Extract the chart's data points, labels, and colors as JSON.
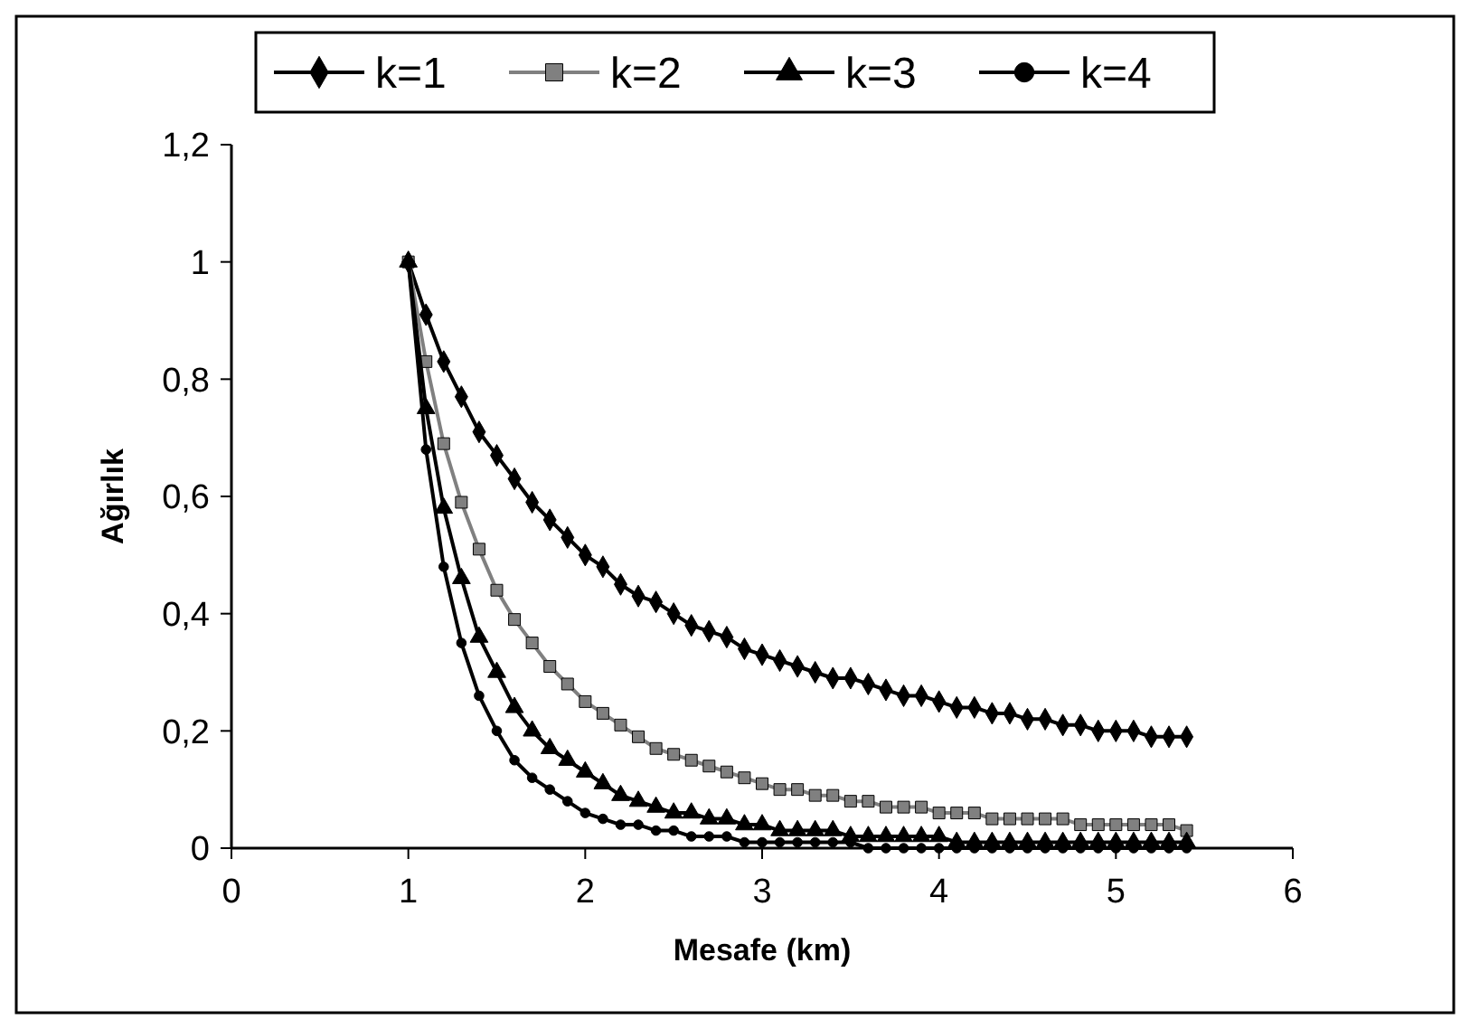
{
  "chart_data": {
    "type": "line",
    "xlabel": "Mesafe (km)",
    "ylabel": "Ağırlık",
    "x": [
      1,
      1.1,
      1.2,
      1.3,
      1.4,
      1.5,
      1.6,
      1.7,
      1.8,
      1.9,
      2,
      2.1,
      2.2,
      2.3,
      2.4,
      2.5,
      2.6,
      2.7,
      2.8,
      2.9,
      3,
      3.1,
      3.2,
      3.3,
      3.4,
      3.5,
      3.6,
      3.7,
      3.8,
      3.9,
      4,
      4.1,
      4.2,
      4.3,
      4.4,
      4.5,
      4.6,
      4.7,
      4.8,
      4.9,
      5,
      5.1,
      5.2,
      5.3,
      5.4
    ],
    "series": [
      {
        "name": "k=1",
        "color": "#000000",
        "marker": "diamond",
        "values": [
          1,
          0.91,
          0.83,
          0.77,
          0.71,
          0.67,
          0.63,
          0.59,
          0.56,
          0.53,
          0.5,
          0.48,
          0.45,
          0.43,
          0.42,
          0.4,
          0.38,
          0.37,
          0.36,
          0.34,
          0.33,
          0.32,
          0.31,
          0.3,
          0.29,
          0.29,
          0.28,
          0.27,
          0.26,
          0.26,
          0.25,
          0.24,
          0.24,
          0.23,
          0.23,
          0.22,
          0.22,
          0.21,
          0.21,
          0.2,
          0.2,
          0.2,
          0.19,
          0.19,
          0.19
        ]
      },
      {
        "name": "k=2",
        "color": "#808080",
        "marker": "square",
        "values": [
          1,
          0.83,
          0.69,
          0.59,
          0.51,
          0.44,
          0.39,
          0.35,
          0.31,
          0.28,
          0.25,
          0.23,
          0.21,
          0.19,
          0.17,
          0.16,
          0.15,
          0.14,
          0.13,
          0.12,
          0.11,
          0.1,
          0.1,
          0.09,
          0.09,
          0.08,
          0.08,
          0.07,
          0.07,
          0.07,
          0.06,
          0.06,
          0.06,
          0.05,
          0.05,
          0.05,
          0.05,
          0.05,
          0.04,
          0.04,
          0.04,
          0.04,
          0.04,
          0.04,
          0.03
        ]
      },
      {
        "name": "k=3",
        "color": "#000000",
        "marker": "triangle",
        "values": [
          1,
          0.75,
          0.58,
          0.46,
          0.36,
          0.3,
          0.24,
          0.2,
          0.17,
          0.15,
          0.13,
          0.11,
          0.09,
          0.08,
          0.07,
          0.06,
          0.06,
          0.05,
          0.05,
          0.04,
          0.04,
          0.03,
          0.03,
          0.03,
          0.03,
          0.02,
          0.02,
          0.02,
          0.02,
          0.02,
          0.02,
          0.01,
          0.01,
          0.01,
          0.01,
          0.01,
          0.01,
          0.01,
          0.01,
          0.01,
          0.01,
          0.01,
          0.01,
          0.01,
          0.01
        ]
      },
      {
        "name": "k=4",
        "color": "#000000",
        "marker": "circle",
        "values": [
          1,
          0.68,
          0.48,
          0.35,
          0.26,
          0.2,
          0.15,
          0.12,
          0.1,
          0.08,
          0.06,
          0.05,
          0.04,
          0.04,
          0.03,
          0.03,
          0.02,
          0.02,
          0.02,
          0.01,
          0.01,
          0.01,
          0.01,
          0.01,
          0.01,
          0.01,
          0,
          0,
          0,
          0,
          0,
          0,
          0,
          0,
          0,
          0,
          0,
          0,
          0,
          0,
          0,
          0,
          0,
          0,
          0
        ]
      }
    ],
    "xlim": [
      0,
      6
    ],
    "xticks": [
      0,
      1,
      2,
      3,
      4,
      5,
      6
    ],
    "ylim": [
      0,
      1.2
    ],
    "yticks": [
      0,
      {
        "value": 0.2,
        "label": "0,2"
      },
      {
        "value": 0.4,
        "label": "0,4"
      },
      {
        "value": 0.6,
        "label": "0,6"
      },
      {
        "value": 0.8,
        "label": "0,8"
      },
      1,
      {
        "value": 1.2,
        "label": "1,2"
      }
    ],
    "grid": false,
    "legend": "top",
    "line_style": "solid"
  }
}
